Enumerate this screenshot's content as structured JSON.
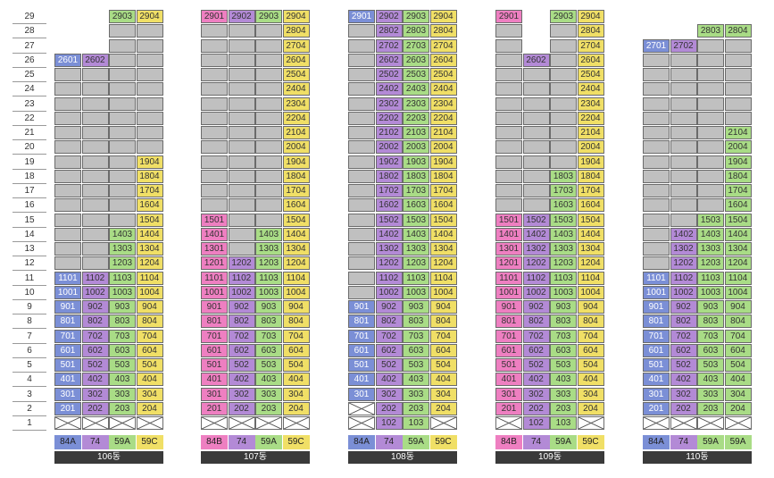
{
  "floors": [
    "29",
    "28",
    "27",
    "26",
    "25",
    "24",
    "23",
    "22",
    "21",
    "20",
    "19",
    "18",
    "17",
    "16",
    "15",
    "14",
    "13",
    "12",
    "11",
    "10",
    "9",
    "8",
    "7",
    "6",
    "5",
    "4",
    "3",
    "2",
    "1"
  ],
  "colors": {
    "blue": "#7b8fd6",
    "purple": "#b38ad6",
    "green": "#a9dc86",
    "yellow": "#f0df66",
    "pink": "#ee7fc1",
    "gray": "#c0c0c0"
  },
  "buildings": [
    {
      "name": "106동",
      "types": [
        {
          "label": "84A",
          "color": "blue"
        },
        {
          "label": "74",
          "color": "purple"
        },
        {
          "label": "59A",
          "color": "green"
        },
        {
          "label": "59C",
          "color": "yellow"
        }
      ],
      "cols": [
        {
          "color": "blue",
          "units": {
            "26": "2601",
            "11": "1101",
            "10": "1001",
            "9": "901",
            "8": "801",
            "7": "701",
            "6": "601",
            "5": "501",
            "4": "401",
            "3": "301",
            "2": "201"
          },
          "gray": [
            "25",
            "24",
            "23",
            "22",
            "21",
            "20",
            "19",
            "18",
            "17",
            "16",
            "15",
            "14",
            "13",
            "12"
          ],
          "x": [
            "1"
          ]
        },
        {
          "color": "purple",
          "units": {
            "26": "2602",
            "11": "1102",
            "10": "1002",
            "9": "902",
            "8": "802",
            "7": "702",
            "6": "602",
            "5": "502",
            "4": "402",
            "3": "302",
            "2": "202"
          },
          "gray": [
            "25",
            "24",
            "23",
            "22",
            "21",
            "20",
            "19",
            "18",
            "17",
            "16",
            "15",
            "14",
            "13",
            "12"
          ],
          "x": [
            "1"
          ]
        },
        {
          "color": "green",
          "units": {
            "29": "2903",
            "14": "1403",
            "13": "1303",
            "12": "1203",
            "11": "1103",
            "10": "1003",
            "9": "903",
            "8": "803",
            "7": "703",
            "6": "603",
            "5": "503",
            "4": "403",
            "3": "303",
            "2": "203"
          },
          "gray": [
            "28",
            "27",
            "26",
            "25",
            "24",
            "23",
            "22",
            "21",
            "20",
            "19",
            "18",
            "17",
            "16",
            "15"
          ],
          "x": [
            "1"
          ]
        },
        {
          "color": "yellow",
          "units": {
            "29": "2904",
            "19": "1904",
            "18": "1804",
            "17": "1704",
            "16": "1604",
            "15": "1504",
            "14": "1404",
            "13": "1304",
            "12": "1204",
            "11": "1104",
            "10": "1004",
            "9": "904",
            "8": "804",
            "7": "704",
            "6": "604",
            "5": "504",
            "4": "404",
            "3": "304",
            "2": "204"
          },
          "gray": [
            "28",
            "27",
            "26",
            "25",
            "24",
            "23",
            "22",
            "21",
            "20"
          ],
          "x": [
            "1"
          ]
        }
      ]
    },
    {
      "name": "107동",
      "types": [
        {
          "label": "84B",
          "color": "pink"
        },
        {
          "label": "74",
          "color": "purple"
        },
        {
          "label": "59A",
          "color": "green"
        },
        {
          "label": "59C",
          "color": "yellow"
        }
      ],
      "cols": [
        {
          "color": "pink",
          "units": {
            "29": "2901",
            "15": "1501",
            "14": "1401",
            "13": "1301",
            "12": "1201",
            "11": "1101",
            "10": "1001",
            "9": "901",
            "8": "801",
            "7": "701",
            "6": "601",
            "5": "501",
            "4": "401",
            "3": "301",
            "2": "201"
          },
          "gray": [
            "28",
            "27",
            "26",
            "25",
            "24",
            "23",
            "22",
            "21",
            "20",
            "19",
            "18",
            "17",
            "16"
          ],
          "x": [
            "1"
          ]
        },
        {
          "color": "purple",
          "units": {
            "29": "2902",
            "12": "1202",
            "11": "1102",
            "10": "1002",
            "9": "902",
            "8": "802",
            "7": "702",
            "6": "602",
            "5": "502",
            "4": "402",
            "3": "302",
            "2": "202"
          },
          "gray": [
            "28",
            "27",
            "26",
            "25",
            "24",
            "23",
            "22",
            "21",
            "20",
            "19",
            "18",
            "17",
            "16",
            "15",
            "14",
            "13"
          ],
          "x": [
            "1"
          ]
        },
        {
          "color": "green",
          "units": {
            "29": "2903",
            "14": "1403",
            "13": "1303",
            "12": "1203",
            "11": "1103",
            "10": "1003",
            "9": "903",
            "8": "803",
            "7": "703",
            "6": "603",
            "5": "503",
            "4": "403",
            "3": "303",
            "2": "203"
          },
          "gray": [
            "28",
            "27",
            "26",
            "25",
            "24",
            "23",
            "22",
            "21",
            "20",
            "19",
            "18",
            "17",
            "16",
            "15"
          ],
          "x": [
            "1"
          ]
        },
        {
          "color": "yellow",
          "units": {
            "29": "2904",
            "28": "2804",
            "27": "2704",
            "26": "2604",
            "25": "2504",
            "24": "2404",
            "23": "2304",
            "22": "2204",
            "21": "2104",
            "20": "2004",
            "19": "1904",
            "18": "1804",
            "17": "1704",
            "16": "1604",
            "15": "1504",
            "14": "1404",
            "13": "1304",
            "12": "1204",
            "11": "1104",
            "10": "1004",
            "9": "904",
            "8": "804",
            "7": "704",
            "6": "604",
            "5": "504",
            "4": "404",
            "3": "304",
            "2": "204"
          },
          "gray": [],
          "x": [
            "1"
          ]
        }
      ]
    },
    {
      "name": "108동",
      "types": [
        {
          "label": "84A",
          "color": "blue"
        },
        {
          "label": "74",
          "color": "purple"
        },
        {
          "label": "59A",
          "color": "green"
        },
        {
          "label": "59C",
          "color": "yellow"
        }
      ],
      "cols": [
        {
          "color": "blue",
          "units": {
            "29": "2901",
            "9": "901",
            "8": "801",
            "7": "701",
            "6": "601",
            "5": "501",
            "4": "401",
            "3": "301"
          },
          "gray": [
            "28",
            "27",
            "26",
            "25",
            "24",
            "23",
            "22",
            "21",
            "20",
            "19",
            "18",
            "17",
            "16",
            "15",
            "14",
            "13",
            "12",
            "11",
            "10"
          ],
          "x": [
            "2",
            "1"
          ]
        },
        {
          "color": "purple",
          "units": {
            "29": "2902",
            "28": "2802",
            "27": "2702",
            "26": "2602",
            "25": "2502",
            "24": "2402",
            "23": "2302",
            "22": "2202",
            "21": "2102",
            "20": "2002",
            "19": "1902",
            "18": "1802",
            "17": "1702",
            "16": "1602",
            "15": "1502",
            "14": "1402",
            "13": "1302",
            "12": "1202",
            "11": "1102",
            "10": "1002",
            "9": "902",
            "8": "802",
            "7": "702",
            "6": "602",
            "5": "502",
            "4": "402",
            "3": "302",
            "2": "202",
            "1": "102"
          },
          "gray": [],
          "x": []
        },
        {
          "color": "green",
          "units": {
            "29": "2903",
            "28": "2803",
            "27": "2703",
            "26": "2603",
            "25": "2503",
            "24": "2403",
            "23": "2303",
            "22": "2203",
            "21": "2103",
            "20": "2003",
            "19": "1903",
            "18": "1803",
            "17": "1703",
            "16": "1603",
            "15": "1503",
            "14": "1403",
            "13": "1303",
            "12": "1203",
            "11": "1103",
            "10": "1003",
            "9": "903",
            "8": "803",
            "7": "703",
            "6": "603",
            "5": "503",
            "4": "403",
            "3": "303",
            "2": "203",
            "1": "103"
          },
          "gray": [],
          "x": []
        },
        {
          "color": "yellow",
          "units": {
            "29": "2904",
            "28": "2804",
            "27": "2704",
            "26": "2604",
            "25": "2504",
            "24": "2404",
            "23": "2304",
            "22": "2204",
            "21": "2104",
            "20": "2004",
            "19": "1904",
            "18": "1804",
            "17": "1704",
            "16": "1604",
            "15": "1504",
            "14": "1404",
            "13": "1304",
            "12": "1204",
            "11": "1104",
            "10": "1004",
            "9": "904",
            "8": "804",
            "7": "704",
            "6": "604",
            "5": "504",
            "4": "404",
            "3": "304",
            "2": "204"
          },
          "gray": [],
          "x": [
            "1"
          ]
        }
      ]
    },
    {
      "name": "109동",
      "types": [
        {
          "label": "84B",
          "color": "pink"
        },
        {
          "label": "74",
          "color": "purple"
        },
        {
          "label": "59A",
          "color": "green"
        },
        {
          "label": "59C",
          "color": "yellow"
        }
      ],
      "cols": [
        {
          "color": "pink",
          "units": {
            "29": "2901",
            "15": "1501",
            "14": "1401",
            "13": "1301",
            "12": "1201",
            "11": "1101",
            "10": "1001",
            "9": "901",
            "8": "801",
            "7": "701",
            "6": "601",
            "5": "501",
            "4": "401",
            "3": "301",
            "2": "201"
          },
          "gray": [
            "28",
            "27",
            "26",
            "25",
            "24",
            "23",
            "22",
            "21",
            "20",
            "19",
            "18",
            "17",
            "16"
          ],
          "x": [
            "1"
          ]
        },
        {
          "color": "purple",
          "units": {
            "26": "2602",
            "15": "1502",
            "14": "1402",
            "13": "1302",
            "12": "1202",
            "11": "1102",
            "10": "1002",
            "9": "902",
            "8": "802",
            "7": "702",
            "6": "602",
            "5": "502",
            "4": "402",
            "3": "302",
            "2": "202",
            "1": "102"
          },
          "gray": [
            "25",
            "24",
            "23",
            "22",
            "21",
            "20",
            "19",
            "18",
            "17",
            "16"
          ],
          "x": []
        },
        {
          "color": "green",
          "units": {
            "29": "2903",
            "18": "1803",
            "17": "1703",
            "16": "1603",
            "15": "1503",
            "14": "1403",
            "13": "1303",
            "12": "1203",
            "11": "1103",
            "10": "1003",
            "9": "903",
            "8": "803",
            "7": "703",
            "6": "603",
            "5": "503",
            "4": "403",
            "3": "303",
            "2": "203",
            "1": "103"
          },
          "gray": [
            "28",
            "27",
            "26",
            "25",
            "24",
            "23",
            "22",
            "21",
            "20",
            "19"
          ],
          "x": []
        },
        {
          "color": "yellow",
          "units": {
            "29": "2904",
            "28": "2804",
            "27": "2704",
            "26": "2604",
            "25": "2504",
            "24": "2404",
            "23": "2304",
            "22": "2204",
            "21": "2104",
            "20": "2004",
            "19": "1904",
            "18": "1804",
            "17": "1704",
            "16": "1604",
            "15": "1504",
            "14": "1404",
            "13": "1304",
            "12": "1204",
            "11": "1104",
            "10": "1004",
            "9": "904",
            "8": "804",
            "7": "704",
            "6": "604",
            "5": "504",
            "4": "404",
            "3": "304",
            "2": "204"
          },
          "gray": [],
          "x": [
            "1"
          ]
        }
      ]
    },
    {
      "name": "110동",
      "types": [
        {
          "label": "84A",
          "color": "blue"
        },
        {
          "label": "74",
          "color": "purple"
        },
        {
          "label": "59A",
          "color": "green"
        },
        {
          "label": "59A",
          "color": "green"
        }
      ],
      "cols": [
        {
          "color": "blue",
          "units": {
            "27": "2701",
            "11": "1101",
            "10": "1001",
            "9": "901",
            "8": "801",
            "7": "701",
            "6": "601",
            "5": "501",
            "4": "401",
            "3": "301",
            "2": "201"
          },
          "gray": [
            "26",
            "25",
            "24",
            "23",
            "22",
            "21",
            "20",
            "19",
            "18",
            "17",
            "16",
            "15",
            "14",
            "13",
            "12"
          ],
          "x": [
            "1"
          ]
        },
        {
          "color": "purple",
          "units": {
            "27": "2702",
            "14": "1402",
            "13": "1302",
            "12": "1202",
            "11": "1102",
            "10": "1002",
            "9": "902",
            "8": "802",
            "7": "702",
            "6": "602",
            "5": "502",
            "4": "402",
            "3": "302",
            "2": "202"
          },
          "gray": [
            "26",
            "25",
            "24",
            "23",
            "22",
            "21",
            "20",
            "19",
            "18",
            "17",
            "16",
            "15"
          ],
          "x": [
            "1"
          ]
        },
        {
          "color": "green",
          "units": {
            "28": "2803",
            "15": "1503",
            "14": "1403",
            "13": "1303",
            "12": "1203",
            "11": "1103",
            "10": "1003",
            "9": "903",
            "8": "803",
            "7": "703",
            "6": "603",
            "5": "503",
            "4": "403",
            "3": "303",
            "2": "203"
          },
          "gray": [
            "27",
            "26",
            "25",
            "24",
            "23",
            "22",
            "21",
            "20",
            "19",
            "18",
            "17",
            "16"
          ],
          "x": [
            "1"
          ]
        },
        {
          "color": "green",
          "units": {
            "28": "2804",
            "21": "2104",
            "20": "2004",
            "19": "1904",
            "18": "1804",
            "17": "1704",
            "16": "1604",
            "15": "1504",
            "14": "1404",
            "13": "1304",
            "12": "1204",
            "11": "1104",
            "10": "1004",
            "9": "904",
            "8": "804",
            "7": "704",
            "6": "604",
            "5": "504",
            "4": "404",
            "3": "304",
            "2": "204"
          },
          "gray": [
            "27",
            "26",
            "25",
            "24",
            "23",
            "22"
          ],
          "x": [
            "1"
          ]
        }
      ]
    }
  ]
}
